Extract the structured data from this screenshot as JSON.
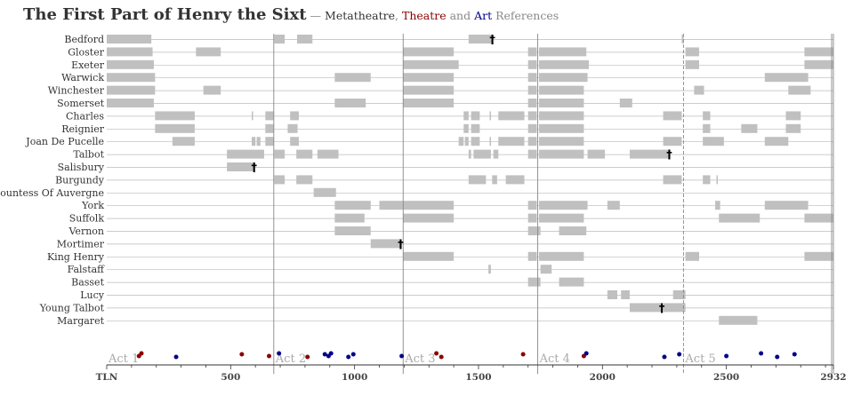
{
  "title": "The First Part of Henry the Sixt",
  "subtitle_dash": " — ",
  "subtitle_meta": "Metatheatre",
  "subtitle_comma": ", ",
  "subtitle_theatre": "Theatre",
  "subtitle_and": " and ",
  "subtitle_art": "Art",
  "subtitle_ref": " References",
  "colors": {
    "bar": "#c0c0c0",
    "grid": "#aaaaaa",
    "act_line": "#888888",
    "act_label": "#aaaaaa",
    "metatheatre": "#333333",
    "theatre": "#8b0000",
    "art": "#00008b"
  },
  "chart_data": {
    "type": "timeline",
    "xlim": [
      0,
      2932
    ],
    "x_ticks": [
      {
        "value": 0,
        "label": "TLN"
      },
      {
        "value": 500,
        "label": "500"
      },
      {
        "value": 1000,
        "label": "1000"
      },
      {
        "value": 1500,
        "label": "1500"
      },
      {
        "value": 2000,
        "label": "2000"
      },
      {
        "value": 2500,
        "label": "2500"
      },
      {
        "value": 2932,
        "label": "2932"
      }
    ],
    "acts": [
      {
        "label": "Act 1",
        "start": 0
      },
      {
        "label": "Act 2",
        "start": 674
      },
      {
        "label": "Act 3",
        "start": 1196
      },
      {
        "label": "Act 4",
        "start": 1739
      },
      {
        "label": "Act 5",
        "start": 2327
      }
    ],
    "characters": [
      {
        "name": "Bedford",
        "segments": [
          [
            0,
            180
          ],
          [
            676,
            718
          ],
          [
            768,
            830
          ],
          [
            1460,
            1556
          ],
          [
            2320,
            2327
          ]
        ],
        "death": 1556
      },
      {
        "name": "Gloster",
        "segments": [
          [
            0,
            185
          ],
          [
            360,
            460
          ],
          [
            1196,
            1400
          ],
          [
            1700,
            1735
          ],
          [
            1744,
            1935
          ],
          [
            2335,
            2390
          ],
          [
            2815,
            2932
          ]
        ]
      },
      {
        "name": "Exeter",
        "segments": [
          [
            0,
            190
          ],
          [
            1196,
            1420
          ],
          [
            1700,
            1735
          ],
          [
            1744,
            1945
          ],
          [
            2335,
            2390
          ],
          [
            2815,
            2932
          ]
        ]
      },
      {
        "name": "Warwick",
        "segments": [
          [
            0,
            195
          ],
          [
            920,
            1065
          ],
          [
            1196,
            1400
          ],
          [
            1700,
            1735
          ],
          [
            1744,
            1940
          ],
          [
            2655,
            2830
          ]
        ]
      },
      {
        "name": "Winchester",
        "segments": [
          [
            0,
            195
          ],
          [
            390,
            460
          ],
          [
            1196,
            1400
          ],
          [
            1700,
            1735
          ],
          [
            1744,
            1925
          ],
          [
            2370,
            2410
          ],
          [
            2750,
            2840
          ]
        ]
      },
      {
        "name": "Somerset",
        "segments": [
          [
            0,
            190
          ],
          [
            920,
            1045
          ],
          [
            1196,
            1400
          ],
          [
            1700,
            1735
          ],
          [
            1744,
            1925
          ],
          [
            2070,
            2120
          ]
        ]
      },
      {
        "name": "Charles",
        "segments": [
          [
            195,
            355
          ],
          [
            585,
            588
          ],
          [
            640,
            675
          ],
          [
            740,
            775
          ],
          [
            1440,
            1460
          ],
          [
            1470,
            1505
          ],
          [
            1545,
            1550
          ],
          [
            1580,
            1685
          ],
          [
            1700,
            1735
          ],
          [
            1744,
            1925
          ],
          [
            2245,
            2320
          ],
          [
            2405,
            2435
          ],
          [
            2740,
            2800
          ]
        ]
      },
      {
        "name": "Reignier",
        "segments": [
          [
            195,
            355
          ],
          [
            640,
            675
          ],
          [
            730,
            770
          ],
          [
            1440,
            1460
          ],
          [
            1470,
            1505
          ],
          [
            1700,
            1735
          ],
          [
            1744,
            1925
          ],
          [
            2405,
            2435
          ],
          [
            2560,
            2625
          ],
          [
            2740,
            2800
          ]
        ]
      },
      {
        "name": "Joan De Pucelle",
        "segments": [
          [
            265,
            355
          ],
          [
            585,
            600
          ],
          [
            605,
            620
          ],
          [
            640,
            675
          ],
          [
            740,
            775
          ],
          [
            1420,
            1440
          ],
          [
            1445,
            1460
          ],
          [
            1470,
            1505
          ],
          [
            1545,
            1550
          ],
          [
            1580,
            1685
          ],
          [
            1700,
            1735
          ],
          [
            1744,
            1925
          ],
          [
            2245,
            2320
          ],
          [
            2405,
            2490
          ],
          [
            2655,
            2750
          ]
        ]
      },
      {
        "name": "Talbot",
        "segments": [
          [
            485,
            635
          ],
          [
            676,
            718
          ],
          [
            765,
            830
          ],
          [
            850,
            935
          ],
          [
            1460,
            1470
          ],
          [
            1480,
            1550
          ],
          [
            1560,
            1580
          ],
          [
            1700,
            1735
          ],
          [
            1744,
            1925
          ],
          [
            1940,
            2010
          ],
          [
            2110,
            2270
          ]
        ],
        "death": 2270
      },
      {
        "name": "Salisbury",
        "segments": [
          [
            485,
            595
          ]
        ],
        "death": 595
      },
      {
        "name": "Burgundy",
        "segments": [
          [
            676,
            718
          ],
          [
            765,
            830
          ],
          [
            1460,
            1530
          ],
          [
            1555,
            1575
          ],
          [
            1610,
            1685
          ],
          [
            2245,
            2320
          ],
          [
            2405,
            2435
          ],
          [
            2460,
            2465
          ]
        ]
      },
      {
        "name": "Countess Of Auvergne",
        "segments": [
          [
            835,
            925
          ]
        ]
      },
      {
        "name": "York",
        "segments": [
          [
            920,
            1065
          ],
          [
            1100,
            1400
          ],
          [
            1700,
            1735
          ],
          [
            1744,
            1940
          ],
          [
            2020,
            2070
          ],
          [
            2455,
            2475
          ],
          [
            2655,
            2830
          ]
        ]
      },
      {
        "name": "Suffolk",
        "segments": [
          [
            920,
            1040
          ],
          [
            1196,
            1400
          ],
          [
            1700,
            1735
          ],
          [
            1744,
            1925
          ],
          [
            2470,
            2635
          ],
          [
            2815,
            2932
          ]
        ]
      },
      {
        "name": "Vernon",
        "segments": [
          [
            920,
            1065
          ],
          [
            1700,
            1750
          ],
          [
            1825,
            1935
          ]
        ]
      },
      {
        "name": "Mortimer",
        "segments": [
          [
            1065,
            1186
          ]
        ],
        "death": 1186
      },
      {
        "name": "King Henry",
        "segments": [
          [
            1196,
            1400
          ],
          [
            1700,
            1735
          ],
          [
            1744,
            1925
          ],
          [
            2335,
            2390
          ],
          [
            2815,
            2932
          ]
        ]
      },
      {
        "name": "Falstaff",
        "segments": [
          [
            1540,
            1550
          ],
          [
            1750,
            1795
          ]
        ]
      },
      {
        "name": "Basset",
        "segments": [
          [
            1700,
            1750
          ],
          [
            1825,
            1925
          ]
        ]
      },
      {
        "name": "Lucy",
        "segments": [
          [
            2020,
            2060
          ],
          [
            2075,
            2110
          ],
          [
            2285,
            2335
          ]
        ]
      },
      {
        "name": "Young Talbot",
        "segments": [
          [
            2110,
            2240
          ],
          [
            2245,
            2335
          ]
        ],
        "death": 2240
      },
      {
        "name": "Margaret",
        "segments": [
          [
            2470,
            2625
          ]
        ]
      }
    ],
    "references": [
      {
        "x": 130,
        "type": "theatre"
      },
      {
        "x": 140,
        "type": "theatre"
      },
      {
        "x": 280,
        "type": "art"
      },
      {
        "x": 545,
        "type": "theatre"
      },
      {
        "x": 655,
        "type": "theatre"
      },
      {
        "x": 695,
        "type": "art"
      },
      {
        "x": 810,
        "type": "theatre"
      },
      {
        "x": 880,
        "type": "art"
      },
      {
        "x": 895,
        "type": "art"
      },
      {
        "x": 905,
        "type": "art"
      },
      {
        "x": 975,
        "type": "art"
      },
      {
        "x": 995,
        "type": "art"
      },
      {
        "x": 1190,
        "type": "art"
      },
      {
        "x": 1330,
        "type": "theatre"
      },
      {
        "x": 1350,
        "type": "theatre"
      },
      {
        "x": 1680,
        "type": "theatre"
      },
      {
        "x": 1925,
        "type": "theatre"
      },
      {
        "x": 1935,
        "type": "art"
      },
      {
        "x": 2250,
        "type": "art"
      },
      {
        "x": 2310,
        "type": "art"
      },
      {
        "x": 2500,
        "type": "art"
      },
      {
        "x": 2640,
        "type": "art"
      },
      {
        "x": 2705,
        "type": "art"
      },
      {
        "x": 2775,
        "type": "art"
      }
    ]
  }
}
